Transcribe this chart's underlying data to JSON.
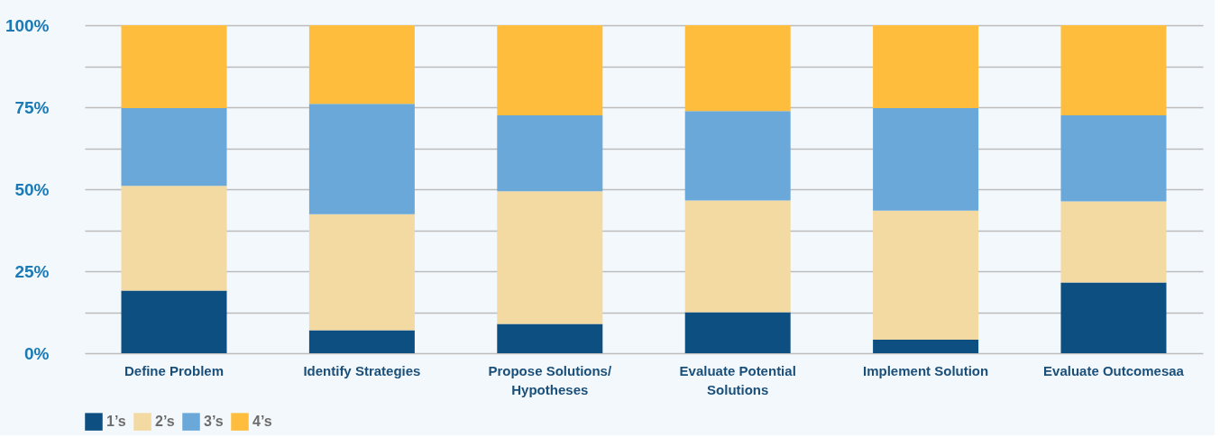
{
  "chart_data": {
    "type": "bar",
    "stacked": true,
    "categories": [
      "Define Problem",
      "Identify Strategies",
      "Propose Solutions/\nHypotheses",
      "Evaluate Potential\nSolutions",
      "Implement Solution",
      "Evaluate Outcomesaa"
    ],
    "series": [
      {
        "name": "1’s",
        "color": "#0d4f80",
        "values": [
          19.1,
          7.0,
          8.9,
          12.5,
          4.1,
          21.6
        ]
      },
      {
        "name": "2’s",
        "color": "#f3d9a2",
        "values": [
          31.9,
          35.4,
          40.5,
          34.1,
          39.4,
          24.7
        ]
      },
      {
        "name": "3’s",
        "color": "#6aa8da",
        "values": [
          23.7,
          33.6,
          23.1,
          27.2,
          31.2,
          26.2
        ]
      },
      {
        "name": "4’s",
        "color": "#ffbd3d",
        "values": [
          25.3,
          24.0,
          27.5,
          26.2,
          25.3,
          27.5
        ]
      }
    ],
    "ylim": [
      0,
      100
    ],
    "yticks": [
      {
        "value": 0,
        "label": "0%"
      },
      {
        "value": 12.5,
        "label": null
      },
      {
        "value": 25,
        "label": "25%"
      },
      {
        "value": 37.5,
        "label": null
      },
      {
        "value": 50,
        "label": "50%"
      },
      {
        "value": 62.5,
        "label": null
      },
      {
        "value": 75,
        "label": "75%"
      },
      {
        "value": 87.5,
        "label": null
      },
      {
        "value": 100,
        "label": "100%"
      }
    ],
    "grid": "y",
    "legend": "bottom"
  }
}
